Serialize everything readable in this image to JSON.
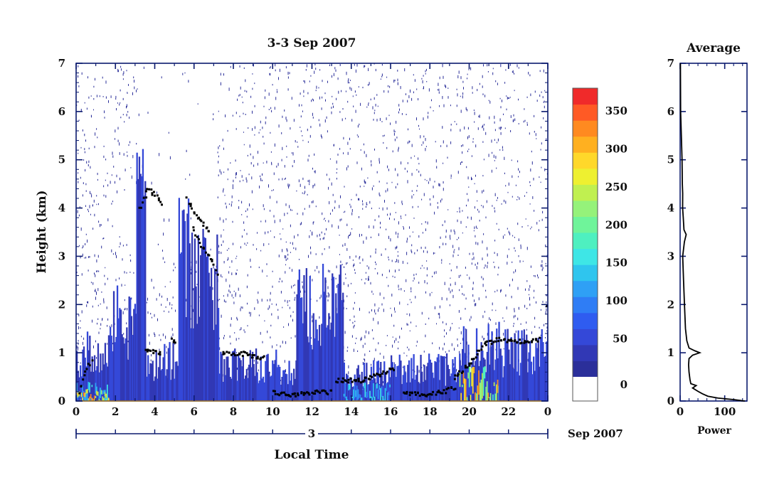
{
  "chart_data": {
    "type": "heatmap",
    "title": "3-3 Sep 2007",
    "xlabel": "Local Time",
    "ylabel": "Height (km)",
    "xlim": [
      0,
      24
    ],
    "ylim": [
      0,
      7
    ],
    "x_ticks": [
      "0",
      "2",
      "4",
      "6",
      "8",
      "10",
      "12",
      "14",
      "16",
      "18",
      "20",
      "22",
      "0"
    ],
    "y_ticks": [
      "0",
      "1",
      "2",
      "3",
      "4",
      "5",
      "6",
      "7"
    ],
    "date_axis": {
      "day_label": "3",
      "month_label": "Sep 2007"
    },
    "colorbar": {
      "ticks": [
        "0",
        "50",
        "100",
        "150",
        "200",
        "250",
        "300",
        "350"
      ],
      "range": [
        0,
        380
      ],
      "colors": [
        "#2b2f9a",
        "#3138b5",
        "#3448d8",
        "#2f5cf0",
        "#2f7df5",
        "#2fa0f5",
        "#2fc5ee",
        "#3ee6e6",
        "#4ef0c0",
        "#6ff49a",
        "#95f27a",
        "#c0f050",
        "#eef030",
        "#ffd82a",
        "#ffb020",
        "#ff8a20",
        "#ff5a25",
        "#f02a2a"
      ]
    },
    "column_intensity": [
      {
        "start": 0,
        "end": 1.7,
        "top_km": 1.4,
        "level": "high near ground"
      },
      {
        "start": 1.7,
        "end": 3.0,
        "top_km": 2.3,
        "level": "low"
      },
      {
        "start": 3.0,
        "end": 3.5,
        "top_km": 5.0,
        "level": "low"
      },
      {
        "start": 3.5,
        "end": 4.6,
        "top_km": 1.1,
        "level": "low"
      },
      {
        "start": 4.6,
        "end": 5.2,
        "top_km": 1.2,
        "level": "low"
      },
      {
        "start": 5.2,
        "end": 6.0,
        "top_km": 4.2,
        "level": "low"
      },
      {
        "start": 6.0,
        "end": 7.2,
        "top_km": 3.3,
        "level": "low"
      },
      {
        "start": 7.2,
        "end": 10.2,
        "top_km": 1.0,
        "level": "low"
      },
      {
        "start": 10.2,
        "end": 11.2,
        "top_km": 0.8,
        "level": "low"
      },
      {
        "start": 11.2,
        "end": 13.6,
        "top_km": 2.6,
        "level": "low"
      },
      {
        "start": 13.6,
        "end": 16.0,
        "top_km": 0.8,
        "level": "moderate"
      },
      {
        "start": 16.0,
        "end": 19.5,
        "top_km": 0.9,
        "level": "low"
      },
      {
        "start": 19.5,
        "end": 21.5,
        "top_km": 1.5,
        "level": "high"
      },
      {
        "start": 21.5,
        "end": 24.0,
        "top_km": 1.4,
        "level": "low"
      }
    ],
    "average_panel": {
      "title": "Average",
      "xlabel": "Power",
      "x_ticks": [
        "0",
        "100"
      ],
      "xlim": [
        0,
        150
      ],
      "y_ticks": [
        "0",
        "1",
        "2",
        "3",
        "4",
        "5",
        "6",
        "7"
      ],
      "profile": [
        {
          "h": 0.0,
          "p": 145
        },
        {
          "h": 0.03,
          "p": 120
        },
        {
          "h": 0.06,
          "p": 85
        },
        {
          "h": 0.1,
          "p": 62
        },
        {
          "h": 0.15,
          "p": 50
        },
        {
          "h": 0.2,
          "p": 40
        },
        {
          "h": 0.27,
          "p": 28
        },
        {
          "h": 0.32,
          "p": 36
        },
        {
          "h": 0.36,
          "p": 24
        },
        {
          "h": 0.45,
          "p": 22
        },
        {
          "h": 0.6,
          "p": 20
        },
        {
          "h": 0.75,
          "p": 19
        },
        {
          "h": 0.88,
          "p": 20
        },
        {
          "h": 0.95,
          "p": 28
        },
        {
          "h": 1.0,
          "p": 44
        },
        {
          "h": 1.04,
          "p": 33
        },
        {
          "h": 1.1,
          "p": 20
        },
        {
          "h": 1.25,
          "p": 15
        },
        {
          "h": 1.5,
          "p": 12
        },
        {
          "h": 2.0,
          "p": 9
        },
        {
          "h": 2.5,
          "p": 7
        },
        {
          "h": 3.0,
          "p": 7
        },
        {
          "h": 3.3,
          "p": 8
        },
        {
          "h": 3.45,
          "p": 13
        },
        {
          "h": 3.55,
          "p": 9
        },
        {
          "h": 3.8,
          "p": 7
        },
        {
          "h": 4.0,
          "p": 6
        },
        {
          "h": 4.3,
          "p": 5
        },
        {
          "h": 4.5,
          "p": 4
        },
        {
          "h": 5.0,
          "p": 3
        },
        {
          "h": 6.0,
          "p": 2
        },
        {
          "h": 7.0,
          "p": 2
        }
      ]
    }
  }
}
